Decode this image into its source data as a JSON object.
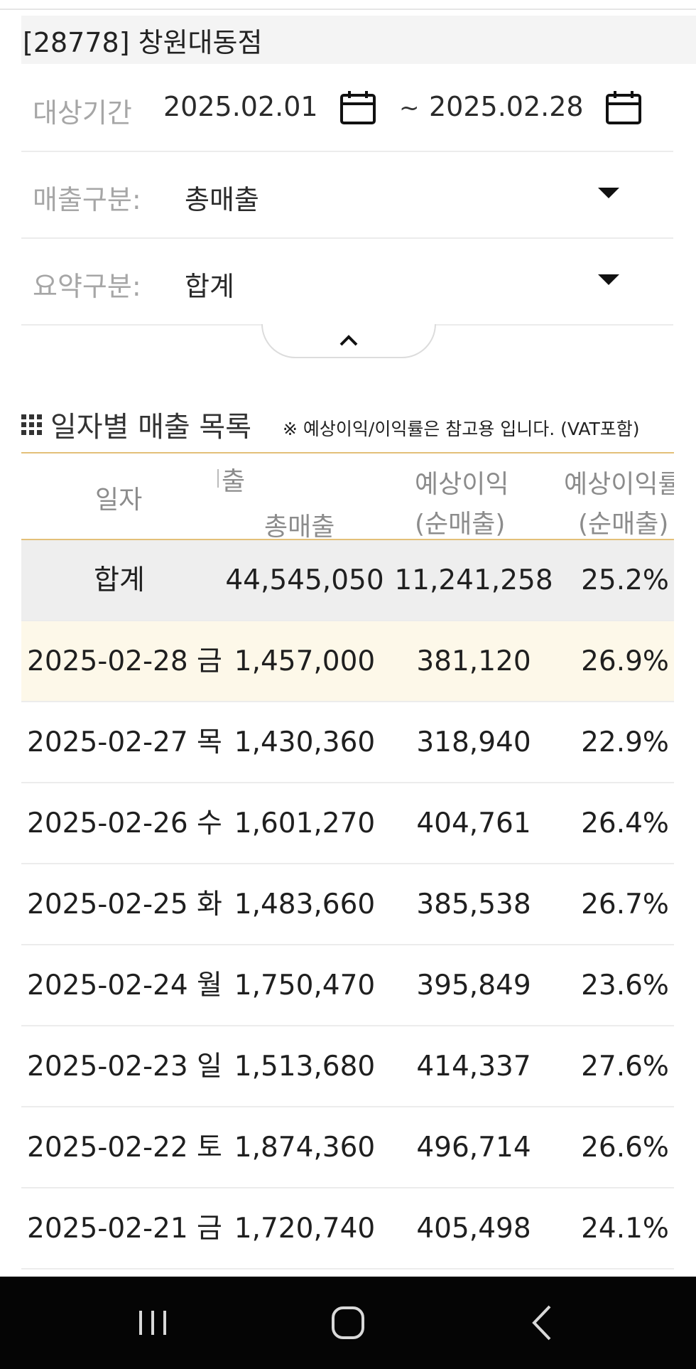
{
  "store": {
    "title": "[28778] 창원대동점"
  },
  "filters": {
    "period_label": "대상기간",
    "start_date": "2025.02.01",
    "tilde": "~",
    "end_date": "2025.02.28",
    "sales_type_label": "매출구분:",
    "sales_type_value": "총매출",
    "summary_type_label": "요약구분:",
    "summary_type_value": "합계"
  },
  "section": {
    "title": "일자별 매출 목록",
    "note": "※ 예상이익/이익률은 참고용 입니다. (VAT포함)"
  },
  "table": {
    "headers": {
      "date": "일자",
      "sales_top": "출",
      "sales": "총매출",
      "profit_top": "예상이익",
      "profit_bottom": "(순매출)",
      "rate_top": "예상이익률",
      "rate_bottom": "(순매출)"
    },
    "total": {
      "date": "합계",
      "sales": "44,545,050",
      "profit": "11,241,258",
      "rate": "25.2%"
    },
    "rows": [
      {
        "date": "2025-02-28 금",
        "sales": "1,457,000",
        "profit": "381,120",
        "rate": "26.9%"
      },
      {
        "date": "2025-02-27 목",
        "sales": "1,430,360",
        "profit": "318,940",
        "rate": "22.9%"
      },
      {
        "date": "2025-02-26 수",
        "sales": "1,601,270",
        "profit": "404,761",
        "rate": "26.4%"
      },
      {
        "date": "2025-02-25 화",
        "sales": "1,483,660",
        "profit": "385,538",
        "rate": "26.7%"
      },
      {
        "date": "2025-02-24 월",
        "sales": "1,750,470",
        "profit": "395,849",
        "rate": "23.6%"
      },
      {
        "date": "2025-02-23 일",
        "sales": "1,513,680",
        "profit": "414,337",
        "rate": "27.6%"
      },
      {
        "date": "2025-02-22 토",
        "sales": "1,874,360",
        "profit": "496,714",
        "rate": "26.6%"
      },
      {
        "date": "2025-02-21 금",
        "sales": "1,720,740",
        "profit": "405,498",
        "rate": "24.1%"
      }
    ]
  },
  "icons": {
    "calendar": "calendar-icon",
    "dropdown": "caret-down-icon",
    "collapse": "chevron-up-icon",
    "list": "grid-dots-icon",
    "nav_recents": "recent-apps-icon",
    "nav_home": "home-icon",
    "nav_back": "back-icon"
  },
  "colors": {
    "accent_line": "#e3c079",
    "highlight_row": "#fdf8e9",
    "total_row": "#eeeeee",
    "navbar": "#050505"
  }
}
